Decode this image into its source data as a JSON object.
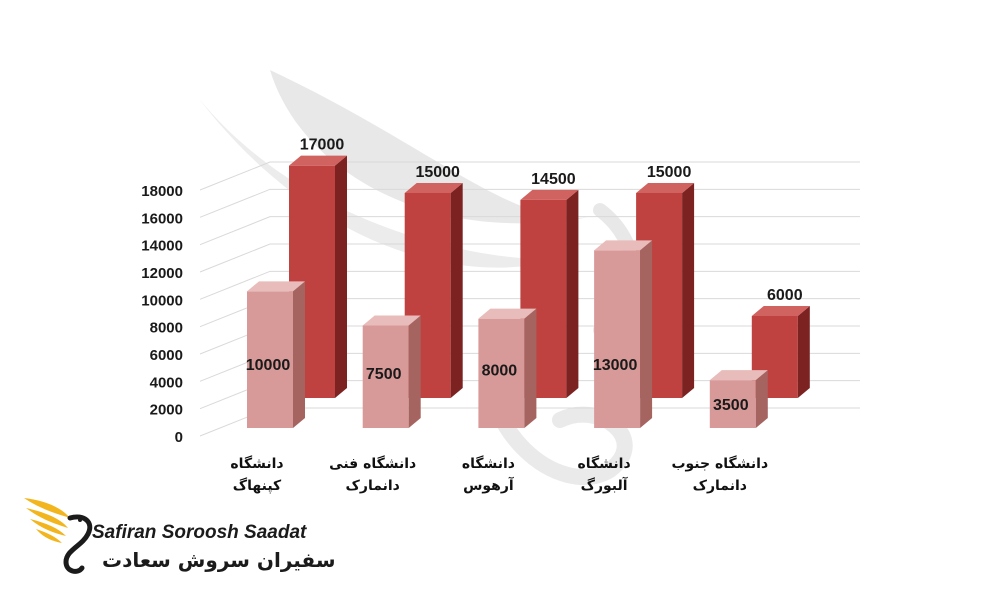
{
  "chart_data": {
    "type": "bar",
    "categories": [
      [
        "دانشگاه",
        "کپنهاگ"
      ],
      [
        "دانشگاه فنی",
        "دانمارک"
      ],
      [
        "دانشگاه",
        "آرهوس"
      ],
      [
        "دانشگاه",
        "آلبورگ"
      ],
      [
        "دانشگاه جنوب",
        "دانمارک"
      ]
    ],
    "series": [
      {
        "values": [
          10000,
          7500,
          8000,
          13000,
          3500
        ]
      },
      {
        "values": [
          17000,
          15000,
          14500,
          15000,
          6000
        ]
      }
    ],
    "yticks": [
      "0",
      "2000",
      "4000",
      "6000",
      "8000",
      "10000",
      "12000",
      "14000",
      "16000",
      "18000"
    ],
    "ylim": [
      0,
      18000
    ],
    "grid": true,
    "colors": {
      "front_face": "#d89a98",
      "front_side": "#a66461",
      "front_top": "#e8bcba",
      "back_face": "#bf4240",
      "back_side": "#7c2322",
      "back_top": "#d06260",
      "grid": "#d9d9d9",
      "watermark": "#d6d6d6"
    }
  },
  "logo": {
    "name_en": "Safiran Soroosh Saadat",
    "name_fa": "سفیران سروش سعادت",
    "colors": {
      "wing": "#f2b51d",
      "text": "#1b1b1b"
    }
  }
}
